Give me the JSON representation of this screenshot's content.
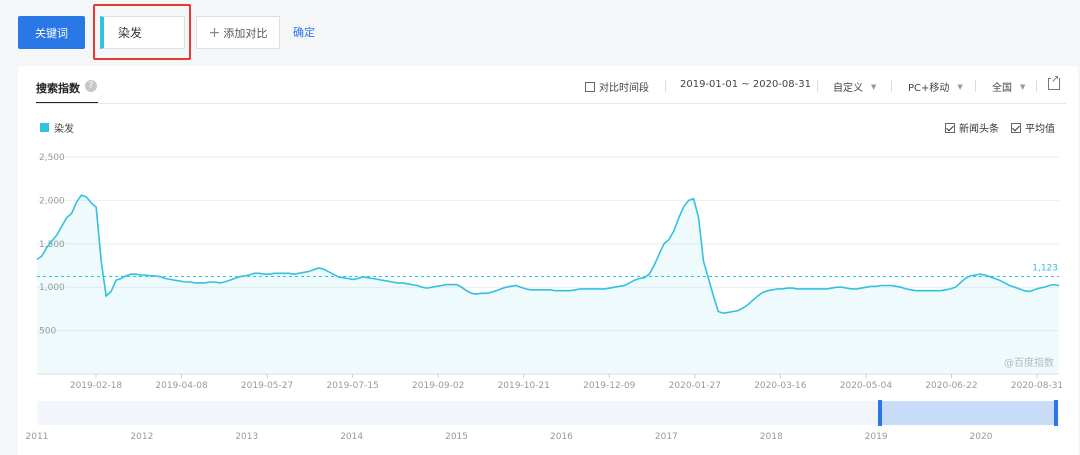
{
  "top": {
    "keyword_button": "关键词",
    "keyword_value": "染发",
    "add_compare": "添加对比",
    "confirm": "确定"
  },
  "panel": {
    "title": "搜索指数",
    "help": "?",
    "compare_period": "对比时间段",
    "date_range": "2019-01-01 ~ 2020-08-31",
    "custom": "自定义",
    "device": "PC+移动",
    "region": "全国",
    "legend_label": "染发",
    "news_headline": "新闻头条",
    "average": "平均值",
    "watermark": "@百度指数",
    "average_value_label": "1,123"
  },
  "colors": {
    "accent": "#2a77e6",
    "series": "#33c1e0",
    "highlight_box": "#e53935"
  },
  "icons": {
    "help": "question-circle-icon",
    "export": "export-icon",
    "caret": "caret-down-icon"
  },
  "chart_data": {
    "type": "area",
    "ylim": [
      0,
      2500
    ],
    "y_ticks": [
      "2,500",
      "2,000",
      "1,500",
      "1,000",
      "500"
    ],
    "y_tick_values": [
      2500,
      2000,
      1500,
      1000,
      500
    ],
    "x_tick_labels": [
      "2019-02-18",
      "2019-04-08",
      "2019-05-27",
      "2019-07-15",
      "2019-09-02",
      "2019-10-21",
      "2019-12-09",
      "2020-01-27",
      "2020-03-16",
      "2020-05-04",
      "2020-06-22",
      "2020-08-31"
    ],
    "average": 1123,
    "series": [
      {
        "name": "染发",
        "values": [
          1320,
          1360,
          1460,
          1530,
          1600,
          1700,
          1800,
          1850,
          1980,
          2060,
          2040,
          1970,
          1920,
          1300,
          900,
          950,
          1080,
          1100,
          1130,
          1150,
          1150,
          1140,
          1140,
          1130,
          1130,
          1120,
          1100,
          1090,
          1080,
          1070,
          1060,
          1060,
          1050,
          1050,
          1050,
          1060,
          1060,
          1050,
          1060,
          1080,
          1100,
          1120,
          1130,
          1140,
          1160,
          1160,
          1150,
          1150,
          1160,
          1160,
          1160,
          1160,
          1150,
          1160,
          1170,
          1180,
          1200,
          1220,
          1210,
          1180,
          1150,
          1120,
          1110,
          1100,
          1090,
          1100,
          1120,
          1110,
          1100,
          1090,
          1080,
          1070,
          1060,
          1050,
          1050,
          1040,
          1030,
          1020,
          1000,
          990,
          1000,
          1010,
          1020,
          1030,
          1030,
          1030,
          1000,
          960,
          930,
          920,
          930,
          930,
          940,
          960,
          980,
          1000,
          1010,
          1020,
          1000,
          980,
          970,
          970,
          970,
          970,
          970,
          960,
          960,
          960,
          960,
          970,
          980,
          980,
          980,
          980,
          980,
          980,
          990,
          1000,
          1010,
          1020,
          1050,
          1080,
          1100,
          1110,
          1150,
          1250,
          1380,
          1500,
          1550,
          1650,
          1800,
          1930,
          2000,
          2020,
          1800,
          1300,
          1100,
          900,
          720,
          700,
          710,
          720,
          730,
          760,
          800,
          850,
          900,
          940,
          960,
          970,
          980,
          980,
          990,
          990,
          980,
          980,
          980,
          980,
          980,
          980,
          980,
          990,
          1000,
          1000,
          990,
          980,
          980,
          990,
          1000,
          1010,
          1010,
          1020,
          1020,
          1020,
          1010,
          1000,
          980,
          970,
          960,
          960,
          960,
          960,
          960,
          960,
          970,
          980,
          1000,
          1050,
          1100,
          1130,
          1140,
          1150,
          1140,
          1120,
          1100,
          1080,
          1050,
          1020,
          1000,
          980,
          960,
          950,
          970,
          990,
          1000,
          1020,
          1030,
          1020
        ]
      }
    ],
    "overview_years": [
      "2011",
      "2012",
      "2013",
      "2014",
      "2015",
      "2016",
      "2017",
      "2018",
      "2019",
      "2020"
    ],
    "grid": true,
    "legend": "top-left"
  }
}
